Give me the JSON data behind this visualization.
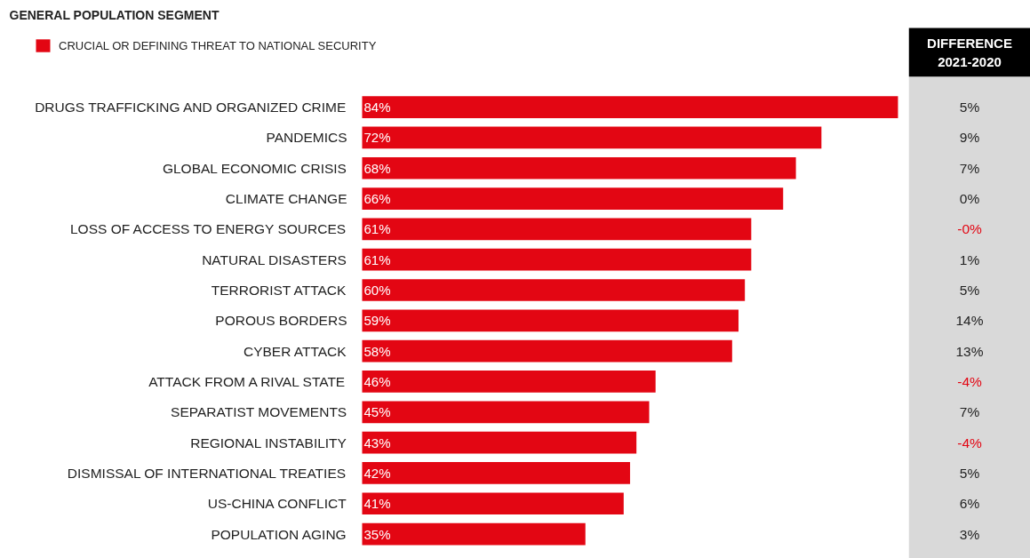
{
  "chart_data": [
    {
      "type": "bar",
      "orientation": "horizontal",
      "title": "GENERAL POPULATION SEGMENT",
      "legend": "top left",
      "categories": [
        "DRUGS TRAFFICKING AND ORGANIZED CRIME",
        "PANDEMICS",
        "GLOBAL ECONOMIC CRISIS",
        "CLIMATE CHANGE",
        "LOSS OF ACCESS TO ENERGY SOURCES",
        "NATURAL DISASTERS",
        "TERRORIST ATTACK",
        "POROUS BORDERS",
        "CYBER ATTACK",
        "ATTACK FROM A RIVAL STATE",
        "SEPARATIST MOVEMENTS",
        "REGIONAL INSTABILITY",
        "DISMISSAL OF INTERNATIONAL TREATIES",
        "US-CHINA CONFLICT",
        "POPULATION AGING"
      ],
      "series": [
        {
          "name": "CRUCIAL OR DEFINING THREAT TO NATIONAL SECURITY",
          "color": "#e30613",
          "values": [
            84,
            72,
            68,
            66,
            61,
            61,
            60,
            59,
            58,
            46,
            45,
            43,
            42,
            41,
            35
          ],
          "value_labels": [
            "84%",
            "72%",
            "68%",
            "66%",
            "61%",
            "61%",
            "60%",
            "59%",
            "58%",
            "46%",
            "45%",
            "43%",
            "42%",
            "41%",
            "35%"
          ]
        }
      ]
    },
    {
      "type": "other",
      "title": "DIFFERENCE 2021-2020",
      "annotations": [
        "5%",
        "9%",
        "7%",
        "0%",
        "-0%",
        "1%",
        "5%",
        "14%",
        "13%",
        "-4%",
        "7%",
        "-4%",
        "5%",
        "6%",
        "3%"
      ],
      "colors": [
        "#222222",
        "#222222",
        "#222222",
        "#222222",
        "#e30613",
        "#222222",
        "#222222",
        "#222222",
        "#222222",
        "#e30613",
        "#222222",
        "#e30613",
        "#222222",
        "#222222",
        "#222222"
      ]
    }
  ]
}
